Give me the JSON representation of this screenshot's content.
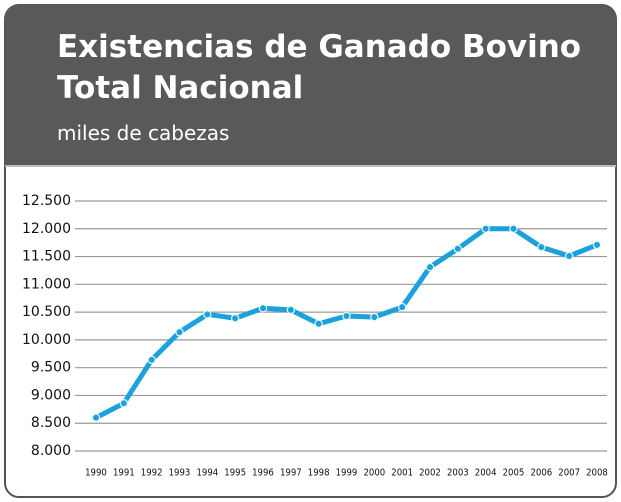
{
  "chart_data": {
    "type": "line",
    "title": [
      "Existencias de Ganado Bovino",
      "Total Nacional"
    ],
    "subtitle": "miles de cabezas",
    "categories": [
      "1990",
      "1991",
      "1992",
      "1993",
      "1994",
      "1995",
      "1996",
      "1997",
      "1998",
      "1999",
      "2000",
      "2001",
      "2002",
      "2003",
      "2004",
      "2005",
      "2006",
      "2007",
      "2008"
    ],
    "series": [
      {
        "color": "#1ba1dc",
        "values": [
          8600,
          8860,
          9640,
          10140,
          10460,
          10390,
          10570,
          10540,
          10290,
          10430,
          10410,
          10590,
          11310,
          11640,
          12000,
          12000,
          11670,
          11510,
          11710
        ]
      }
    ],
    "ylim": [
      8000,
      12500
    ],
    "yticks": [
      {
        "value": 8000,
        "label": "8.000"
      },
      {
        "value": 8500,
        "label": "8.500"
      },
      {
        "value": 9000,
        "label": "9.000"
      },
      {
        "value": 9500,
        "label": "9.500"
      },
      {
        "value": 10000,
        "label": "10.000"
      },
      {
        "value": 10500,
        "label": "10.500"
      },
      {
        "value": 11000,
        "label": "11.000"
      },
      {
        "value": 11500,
        "label": "11.500"
      },
      {
        "value": 12000,
        "label": "12.000"
      },
      {
        "value": 12500,
        "label": "12.500"
      }
    ],
    "grid": true
  }
}
